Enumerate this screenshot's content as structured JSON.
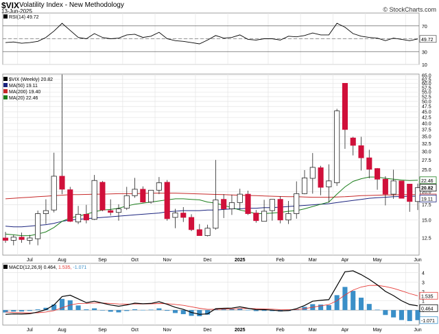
{
  "header": {
    "symbol": "$VIX",
    "name": "Volatility Index - New Methodology",
    "date": "13-Jun-2025",
    "credit": "© StockCharts.com"
  },
  "colors": {
    "up_candle": "#ffffff",
    "down_candle": "#d0103a",
    "neutral_candle": "#000000",
    "ma50": "#1a237e",
    "ma200": "#c62828",
    "ma20": "#1b7e1b",
    "macd_line": "#000000",
    "signal_line": "#e53935",
    "histogram": "#3a8fc8",
    "rsi_line": "#000000"
  },
  "chart_data": [
    {
      "type": "line",
      "panel": "RSI",
      "legend": "RSI(14) 49.72",
      "current_value": "49.72",
      "reference_levels": [
        "70",
        "30"
      ],
      "ylim": [
        10,
        90
      ],
      "y_ticks": [
        "70",
        "50",
        "30",
        "10"
      ],
      "series": [
        {
          "name": "RSI(14)",
          "x": [
            "2024-06-21",
            "2024-06-28",
            "2024-07-05",
            "2024-07-12",
            "2024-07-19",
            "2024-07-26",
            "2024-08-02",
            "2024-08-09",
            "2024-08-16",
            "2024-08-23",
            "2024-08-30",
            "2024-09-06",
            "2024-09-13",
            "2024-09-20",
            "2024-09-27",
            "2024-10-04",
            "2024-10-11",
            "2024-10-18",
            "2024-10-25",
            "2024-11-01",
            "2024-11-08",
            "2024-11-15",
            "2024-11-22",
            "2024-11-29",
            "2024-12-06",
            "2024-12-13",
            "2024-12-20",
            "2024-12-27",
            "2025-01-03",
            "2025-01-10",
            "2025-01-17",
            "2025-01-24",
            "2025-01-31",
            "2025-02-07",
            "2025-02-14",
            "2025-02-21",
            "2025-02-28",
            "2025-03-07",
            "2025-03-14",
            "2025-03-21",
            "2025-03-28",
            "2025-04-04",
            "2025-04-11",
            "2025-04-18",
            "2025-04-25",
            "2025-05-02",
            "2025-05-09",
            "2025-05-16",
            "2025-05-23",
            "2025-05-30",
            "2025-06-06",
            "2025-06-13"
          ],
          "values": [
            44,
            45,
            43,
            44,
            46,
            52,
            62,
            74,
            63,
            52,
            50,
            58,
            52,
            50,
            51,
            56,
            57,
            52,
            54,
            60,
            50,
            47,
            46,
            44,
            42,
            48,
            55,
            51,
            52,
            56,
            49,
            48,
            50,
            50,
            48,
            54,
            53,
            55,
            59,
            56,
            56,
            74,
            68,
            58,
            54,
            52,
            51,
            47,
            51,
            49,
            47,
            49.72
          ]
        }
      ]
    },
    {
      "type": "candlestick",
      "panel": "Price",
      "legend": "$VIX (Weekly) 20.82",
      "current_value": "20.82",
      "y_scale": "log",
      "ylim": [
        10.5,
        66
      ],
      "y_ticks": [
        "65.0",
        "62.5",
        "60.0",
        "57.5",
        "55.0",
        "52.5",
        "50.0",
        "47.5",
        "45.0",
        "42.5",
        "40.0",
        "37.5",
        "35.0",
        "32.5",
        "30.0",
        "27.5",
        "25.0",
        "22.5",
        "20.0",
        "17.5",
        "15.0",
        "12.5"
      ],
      "x": [
        "2024-06-21",
        "2024-06-28",
        "2024-07-05",
        "2024-07-12",
        "2024-07-19",
        "2024-07-26",
        "2024-08-02",
        "2024-08-09",
        "2024-08-16",
        "2024-08-23",
        "2024-08-30",
        "2024-09-06",
        "2024-09-13",
        "2024-09-20",
        "2024-09-27",
        "2024-10-04",
        "2024-10-11",
        "2024-10-18",
        "2024-10-25",
        "2024-11-01",
        "2024-11-08",
        "2024-11-15",
        "2024-11-22",
        "2024-11-29",
        "2024-12-06",
        "2024-12-13",
        "2024-12-20",
        "2024-12-27",
        "2025-01-03",
        "2025-01-10",
        "2025-01-17",
        "2025-01-24",
        "2025-01-31",
        "2025-02-07",
        "2025-02-14",
        "2025-02-21",
        "2025-02-28",
        "2025-03-07",
        "2025-03-14",
        "2025-03-21",
        "2025-03-28",
        "2025-04-04",
        "2025-04-11",
        "2025-04-18",
        "2025-04-25",
        "2025-05-02",
        "2025-05-09",
        "2025-05-16",
        "2025-05-23",
        "2025-05-30",
        "2025-06-06",
        "2025-06-13"
      ],
      "candles": [
        {
          "o": 12.5,
          "h": 13.3,
          "l": 11.9,
          "c": 12.2
        },
        {
          "o": 12.2,
          "h": 12.9,
          "l": 11.6,
          "c": 12.6
        },
        {
          "o": 12.6,
          "h": 13.2,
          "l": 11.9,
          "c": 12.3
        },
        {
          "o": 12.2,
          "h": 12.9,
          "l": 11.7,
          "c": 12.5
        },
        {
          "o": 12.4,
          "h": 16.5,
          "l": 11.6,
          "c": 16.0
        },
        {
          "o": 16.0,
          "h": 18.5,
          "l": 14.4,
          "c": 16.5
        },
        {
          "o": 16.6,
          "h": 29.7,
          "l": 16.2,
          "c": 23.4
        },
        {
          "o": 23.4,
          "h": 65.7,
          "l": 19.5,
          "c": 20.5
        },
        {
          "o": 20.4,
          "h": 21.0,
          "l": 14.7,
          "c": 14.8
        },
        {
          "o": 14.7,
          "h": 17.3,
          "l": 14.4,
          "c": 15.9
        },
        {
          "o": 15.9,
          "h": 17.5,
          "l": 14.5,
          "c": 15.0
        },
        {
          "o": 15.1,
          "h": 23.7,
          "l": 15.0,
          "c": 22.4
        },
        {
          "o": 22.0,
          "h": 22.3,
          "l": 16.4,
          "c": 16.6
        },
        {
          "o": 16.5,
          "h": 18.5,
          "l": 15.7,
          "c": 16.2
        },
        {
          "o": 16.2,
          "h": 17.6,
          "l": 14.9,
          "c": 16.8
        },
        {
          "o": 16.9,
          "h": 21.0,
          "l": 16.6,
          "c": 19.2
        },
        {
          "o": 19.2,
          "h": 23.0,
          "l": 18.8,
          "c": 20.5
        },
        {
          "o": 20.5,
          "h": 21.1,
          "l": 17.9,
          "c": 18.0
        },
        {
          "o": 18.0,
          "h": 20.2,
          "l": 17.7,
          "c": 20.3
        },
        {
          "o": 20.3,
          "h": 23.2,
          "l": 19.5,
          "c": 21.9
        },
        {
          "o": 22.0,
          "h": 22.5,
          "l": 14.9,
          "c": 15.2
        },
        {
          "o": 15.4,
          "h": 16.8,
          "l": 13.8,
          "c": 16.1
        },
        {
          "o": 16.1,
          "h": 17.1,
          "l": 14.7,
          "c": 15.4
        },
        {
          "o": 15.4,
          "h": 15.9,
          "l": 13.4,
          "c": 13.6
        },
        {
          "o": 13.6,
          "h": 14.4,
          "l": 12.9,
          "c": 12.8
        },
        {
          "o": 12.8,
          "h": 14.3,
          "l": 12.7,
          "c": 13.8
        },
        {
          "o": 13.8,
          "h": 27.6,
          "l": 13.6,
          "c": 18.4
        },
        {
          "o": 18.5,
          "h": 19.5,
          "l": 15.3,
          "c": 16.8
        },
        {
          "o": 16.8,
          "h": 19.4,
          "l": 15.8,
          "c": 17.9
        },
        {
          "o": 17.9,
          "h": 20.6,
          "l": 16.6,
          "c": 19.5
        },
        {
          "o": 19.5,
          "h": 20.2,
          "l": 15.8,
          "c": 16.0
        },
        {
          "o": 16.1,
          "h": 16.6,
          "l": 14.6,
          "c": 14.9
        },
        {
          "o": 14.8,
          "h": 18.4,
          "l": 14.8,
          "c": 16.4
        },
        {
          "o": 16.5,
          "h": 18.0,
          "l": 14.9,
          "c": 18.5
        },
        {
          "o": 18.5,
          "h": 19.1,
          "l": 14.5,
          "c": 15.0
        },
        {
          "o": 15.0,
          "h": 18.2,
          "l": 14.4,
          "c": 16.0
        },
        {
          "o": 16.0,
          "h": 22.2,
          "l": 15.2,
          "c": 19.6
        },
        {
          "o": 19.6,
          "h": 24.9,
          "l": 19.5,
          "c": 23.0
        },
        {
          "o": 22.9,
          "h": 29.6,
          "l": 19.6,
          "c": 25.6
        },
        {
          "o": 25.5,
          "h": 26.0,
          "l": 19.3,
          "c": 20.9
        },
        {
          "o": 21.0,
          "h": 26.4,
          "l": 17.9,
          "c": 22.3
        },
        {
          "o": 21.9,
          "h": 46.4,
          "l": 21.2,
          "c": 45.4
        },
        {
          "o": 60.1,
          "h": 60.1,
          "l": 30.9,
          "c": 37.6
        },
        {
          "o": 34.5,
          "h": 34.9,
          "l": 28.9,
          "c": 32.0
        },
        {
          "o": 31.9,
          "h": 34.9,
          "l": 24.8,
          "c": 28.2
        },
        {
          "o": 28.2,
          "h": 30.6,
          "l": 22.9,
          "c": 25.1
        },
        {
          "o": 25.3,
          "h": 25.4,
          "l": 20.4,
          "c": 22.7
        },
        {
          "o": 22.7,
          "h": 23.4,
          "l": 17.4,
          "c": 19.5
        },
        {
          "o": 19.5,
          "h": 25.0,
          "l": 18.6,
          "c": 22.3
        },
        {
          "o": 22.3,
          "h": 21.8,
          "l": 18.9,
          "c": 18.7
        },
        {
          "o": 21.6,
          "h": 21.2,
          "l": 16.3,
          "c": 18.1
        },
        {
          "o": 18.1,
          "h": 21.7,
          "l": 16.6,
          "c": 20.82
        }
      ],
      "series": [
        {
          "name": "MA(50) 19.11",
          "current_value": "19.11",
          "values": [
            14.1,
            14.0,
            14.0,
            14.1,
            14.2,
            14.3,
            14.5,
            14.8,
            15.0,
            15.1,
            15.2,
            15.3,
            15.4,
            15.5,
            15.6,
            15.7,
            15.8,
            15.9,
            16.0,
            16.1,
            16.3,
            16.4,
            16.5,
            16.5,
            16.5,
            16.6,
            16.6,
            16.7,
            16.8,
            16.8,
            16.9,
            16.9,
            17.0,
            17.0,
            17.1,
            17.2,
            17.3,
            17.4,
            17.5,
            17.6,
            17.7,
            17.9,
            18.1,
            18.3,
            18.5,
            18.7,
            18.8,
            18.9,
            19.0,
            19.05,
            19.1,
            19.11
          ]
        },
        {
          "name": "MA(200) 19.40",
          "current_value": "19.40",
          "values": [
            18.6,
            18.7,
            18.8,
            18.9,
            19.0,
            19.1,
            19.2,
            19.3,
            19.4,
            19.4,
            19.45,
            19.5,
            19.5,
            19.55,
            19.6,
            19.6,
            19.6,
            19.65,
            19.7,
            19.7,
            19.7,
            19.7,
            19.65,
            19.6,
            19.55,
            19.5,
            19.45,
            19.4,
            19.35,
            19.3,
            19.25,
            19.2,
            19.15,
            19.1,
            19.05,
            19.0,
            19.0,
            18.95,
            18.9,
            18.9,
            18.9,
            18.95,
            19.0,
            19.1,
            19.2,
            19.25,
            19.3,
            19.35,
            19.35,
            19.4,
            19.4,
            19.4
          ]
        },
        {
          "name": "MA(20) 22.46",
          "current_value": "22.46",
          "values": [
            13.0,
            12.9,
            12.8,
            12.8,
            13.0,
            13.3,
            13.9,
            14.8,
            15.3,
            15.6,
            15.9,
            16.3,
            16.6,
            16.7,
            16.9,
            17.3,
            17.6,
            17.8,
            18.0,
            18.2,
            18.4,
            18.6,
            18.6,
            18.5,
            18.4,
            18.0,
            17.8,
            17.4,
            17.0,
            16.6,
            16.3,
            16.0,
            16.0,
            16.1,
            16.2,
            16.4,
            16.5,
            16.8,
            17.2,
            17.6,
            18.0,
            19.5,
            21.0,
            22.2,
            22.8,
            23.2,
            23.2,
            22.9,
            22.7,
            22.5,
            22.4,
            22.46
          ]
        }
      ],
      "x_tick_labels": [
        "Jul",
        "Aug",
        "Sep",
        "Oct",
        "Nov",
        "Dec",
        "2025",
        "Feb",
        "Mar",
        "Apr",
        "May",
        "Jun"
      ]
    },
    {
      "type": "bar",
      "panel": "MACD",
      "legend_label": "MACD(12,26,9)",
      "legend_values": [
        "0.464",
        "1.535",
        "-1.071"
      ],
      "ylim": [
        -1.6,
        5
      ],
      "y_ticks": [
        "4",
        "3",
        "2",
        "1",
        "0"
      ],
      "value_tags": [
        "1.535",
        "0.464",
        "-1.071"
      ],
      "series": [
        {
          "name": "MACD",
          "values": [
            -0.45,
            -0.4,
            -0.42,
            -0.38,
            -0.2,
            0.05,
            0.55,
            1.45,
            1.6,
            1.2,
            0.8,
            0.95,
            0.75,
            0.55,
            0.42,
            0.55,
            0.75,
            0.68,
            0.72,
            0.9,
            0.62,
            0.3,
            0.08,
            -0.25,
            -0.45,
            -0.4,
            0.15,
            0.2,
            0.22,
            0.35,
            0.2,
            0.05,
            0.05,
            0.0,
            -0.08,
            -0.05,
            0.15,
            0.5,
            0.95,
            1.05,
            1.12,
            2.6,
            4.1,
            4.2,
            3.8,
            3.3,
            2.7,
            2.0,
            1.55,
            1.0,
            0.6,
            0.464
          ]
        },
        {
          "name": "Signal",
          "values": [
            -0.2,
            -0.25,
            -0.28,
            -0.3,
            -0.28,
            -0.2,
            -0.05,
            0.25,
            0.55,
            0.7,
            0.72,
            0.76,
            0.76,
            0.72,
            0.66,
            0.64,
            0.66,
            0.66,
            0.67,
            0.71,
            0.69,
            0.61,
            0.51,
            0.36,
            0.2,
            0.08,
            0.09,
            0.11,
            0.13,
            0.17,
            0.18,
            0.15,
            0.13,
            0.1,
            0.06,
            0.04,
            0.06,
            0.15,
            0.31,
            0.46,
            0.59,
            1.0,
            1.62,
            2.14,
            2.47,
            2.64,
            2.65,
            2.52,
            2.33,
            2.06,
            1.77,
            1.535
          ]
        },
        {
          "name": "Histogram",
          "values": [
            -0.25,
            -0.15,
            -0.14,
            -0.08,
            0.08,
            0.25,
            0.6,
            1.2,
            1.05,
            0.5,
            0.08,
            0.19,
            -0.01,
            -0.17,
            -0.24,
            -0.09,
            0.09,
            0.02,
            0.05,
            0.19,
            -0.07,
            -0.31,
            -0.43,
            -0.61,
            -0.65,
            -0.48,
            0.06,
            0.09,
            0.09,
            0.18,
            0.02,
            -0.1,
            -0.08,
            -0.1,
            -0.14,
            -0.09,
            0.09,
            0.35,
            0.64,
            0.59,
            0.53,
            1.6,
            2.48,
            2.06,
            1.33,
            0.66,
            0.05,
            -0.52,
            -0.78,
            -1.06,
            -1.17,
            -1.071
          ]
        }
      ],
      "x_tick_labels": [
        "Jul",
        "Aug",
        "Sep",
        "Oct",
        "Nov",
        "Dec",
        "2025",
        "Feb",
        "Mar",
        "Apr",
        "May",
        "Jun"
      ]
    }
  ]
}
